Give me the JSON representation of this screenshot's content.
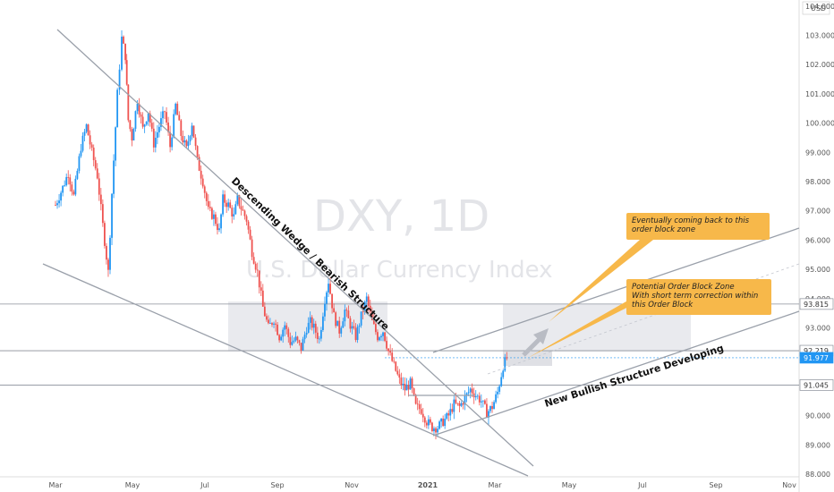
{
  "chart_data": {
    "type": "candlestick",
    "symbol": "DXY, 1D",
    "description": "U.S. Dollar Currency Index",
    "currency": "USD",
    "y_ticks": [
      "104.000",
      "103.000",
      "102.000",
      "101.000",
      "100.000",
      "99.000",
      "98.000",
      "97.000",
      "96.000",
      "95.000",
      "94.000",
      "93.000",
      "92.000",
      "91.000",
      "90.000",
      "89.000",
      "88.000"
    ],
    "x_ticks": [
      "Mar",
      "May",
      "Jul",
      "Sep",
      "Nov",
      "2021",
      "Mar",
      "May",
      "Jul",
      "Sep",
      "Nov"
    ],
    "ylim": [
      88,
      104.3
    ],
    "price_labels": [
      {
        "value": 93.815,
        "text": "93.815",
        "bg": "#ffffff",
        "fg": "#333333"
      },
      {
        "value": 92.219,
        "text": "92.219",
        "bg": "#ffffff",
        "fg": "#333333"
      },
      {
        "value": 91.977,
        "text": "91.977",
        "bg": "#2196f3",
        "fg": "#ffffff"
      },
      {
        "value": 91.045,
        "text": "91.045",
        "bg": "#ffffff",
        "fg": "#333333"
      }
    ],
    "path_points": [
      [
        0,
        97.2
      ],
      [
        0.2,
        97.8
      ],
      [
        0.35,
        98.3
      ],
      [
        0.5,
        97.5
      ],
      [
        0.7,
        99.2
      ],
      [
        0.85,
        99.9
      ],
      [
        1.0,
        99.0
      ],
      [
        1.15,
        98.2
      ],
      [
        1.3,
        96.5
      ],
      [
        1.45,
        94.9
      ],
      [
        1.55,
        97.6
      ],
      [
        1.7,
        101.0
      ],
      [
        1.82,
        102.9
      ],
      [
        1.92,
        102.3
      ],
      [
        2.0,
        100.1
      ],
      [
        2.1,
        99.5
      ],
      [
        2.25,
        100.8
      ],
      [
        2.4,
        99.8
      ],
      [
        2.55,
        100.4
      ],
      [
        2.7,
        99.3
      ],
      [
        2.85,
        99.9
      ],
      [
        3.0,
        100.4
      ],
      [
        3.15,
        99.2
      ],
      [
        3.3,
        100.6
      ],
      [
        3.45,
        99.6
      ],
      [
        3.6,
        99.1
      ],
      [
        3.75,
        100.0
      ],
      [
        3.9,
        98.7
      ],
      [
        4.05,
        98.0
      ],
      [
        4.2,
        97.0
      ],
      [
        4.35,
        96.8
      ],
      [
        4.5,
        96.3
      ],
      [
        4.6,
        97.4
      ],
      [
        4.75,
        97.2
      ],
      [
        4.9,
        96.8
      ],
      [
        5.0,
        97.4
      ],
      [
        5.1,
        97.1
      ],
      [
        5.25,
        96.7
      ],
      [
        5.4,
        95.6
      ],
      [
        5.55,
        94.9
      ],
      [
        5.7,
        93.7
      ],
      [
        5.85,
        93.0
      ],
      [
        6.0,
        93.3
      ],
      [
        6.15,
        92.7
      ],
      [
        6.3,
        93.1
      ],
      [
        6.45,
        92.5
      ],
      [
        6.6,
        92.6
      ],
      [
        6.75,
        92.3
      ],
      [
        6.9,
        93.0
      ],
      [
        7.0,
        93.2
      ],
      [
        7.1,
        93.0
      ],
      [
        7.25,
        92.6
      ],
      [
        7.4,
        94.0
      ],
      [
        7.5,
        94.6
      ],
      [
        7.65,
        93.4
      ],
      [
        7.8,
        92.9
      ],
      [
        7.95,
        93.6
      ],
      [
        8.1,
        93.1
      ],
      [
        8.25,
        92.7
      ],
      [
        8.4,
        93.4
      ],
      [
        8.55,
        94.0
      ],
      [
        8.7,
        93.2
      ],
      [
        8.85,
        92.7
      ],
      [
        9.0,
        92.9
      ],
      [
        9.15,
        92.2
      ],
      [
        9.3,
        91.7
      ],
      [
        9.45,
        91.2
      ],
      [
        9.6,
        90.9
      ],
      [
        9.75,
        91.1
      ],
      [
        9.9,
        90.3
      ],
      [
        10.05,
        90.2
      ],
      [
        10.2,
        89.8
      ],
      [
        10.35,
        89.6
      ],
      [
        10.5,
        89.6
      ],
      [
        10.65,
        89.8
      ],
      [
        10.8,
        90.0
      ],
      [
        10.95,
        90.4
      ],
      [
        11.1,
        90.3
      ],
      [
        11.25,
        90.6
      ],
      [
        11.4,
        90.9
      ],
      [
        11.55,
        90.7
      ],
      [
        11.7,
        90.5
      ],
      [
        11.85,
        90.1
      ],
      [
        12.0,
        90.3
      ],
      [
        12.15,
        90.8
      ],
      [
        12.3,
        91.7
      ],
      [
        12.45,
        92.1
      ]
    ],
    "annotations": {
      "wedge": "Descending Wedge / Bearish Structure",
      "bullish": "New Bullish Structure Developing",
      "note1": [
        "Eventually coming back to this",
        "order block zone"
      ],
      "note2": [
        "Potential Order Block Zone",
        "With short term correction within",
        "this Order Block"
      ]
    },
    "colors": {
      "up": "#2196f3",
      "down": "#ef5350",
      "trendline": "#9aa0aa",
      "note": "#f7b84a",
      "zone": "#e9eaee"
    }
  }
}
